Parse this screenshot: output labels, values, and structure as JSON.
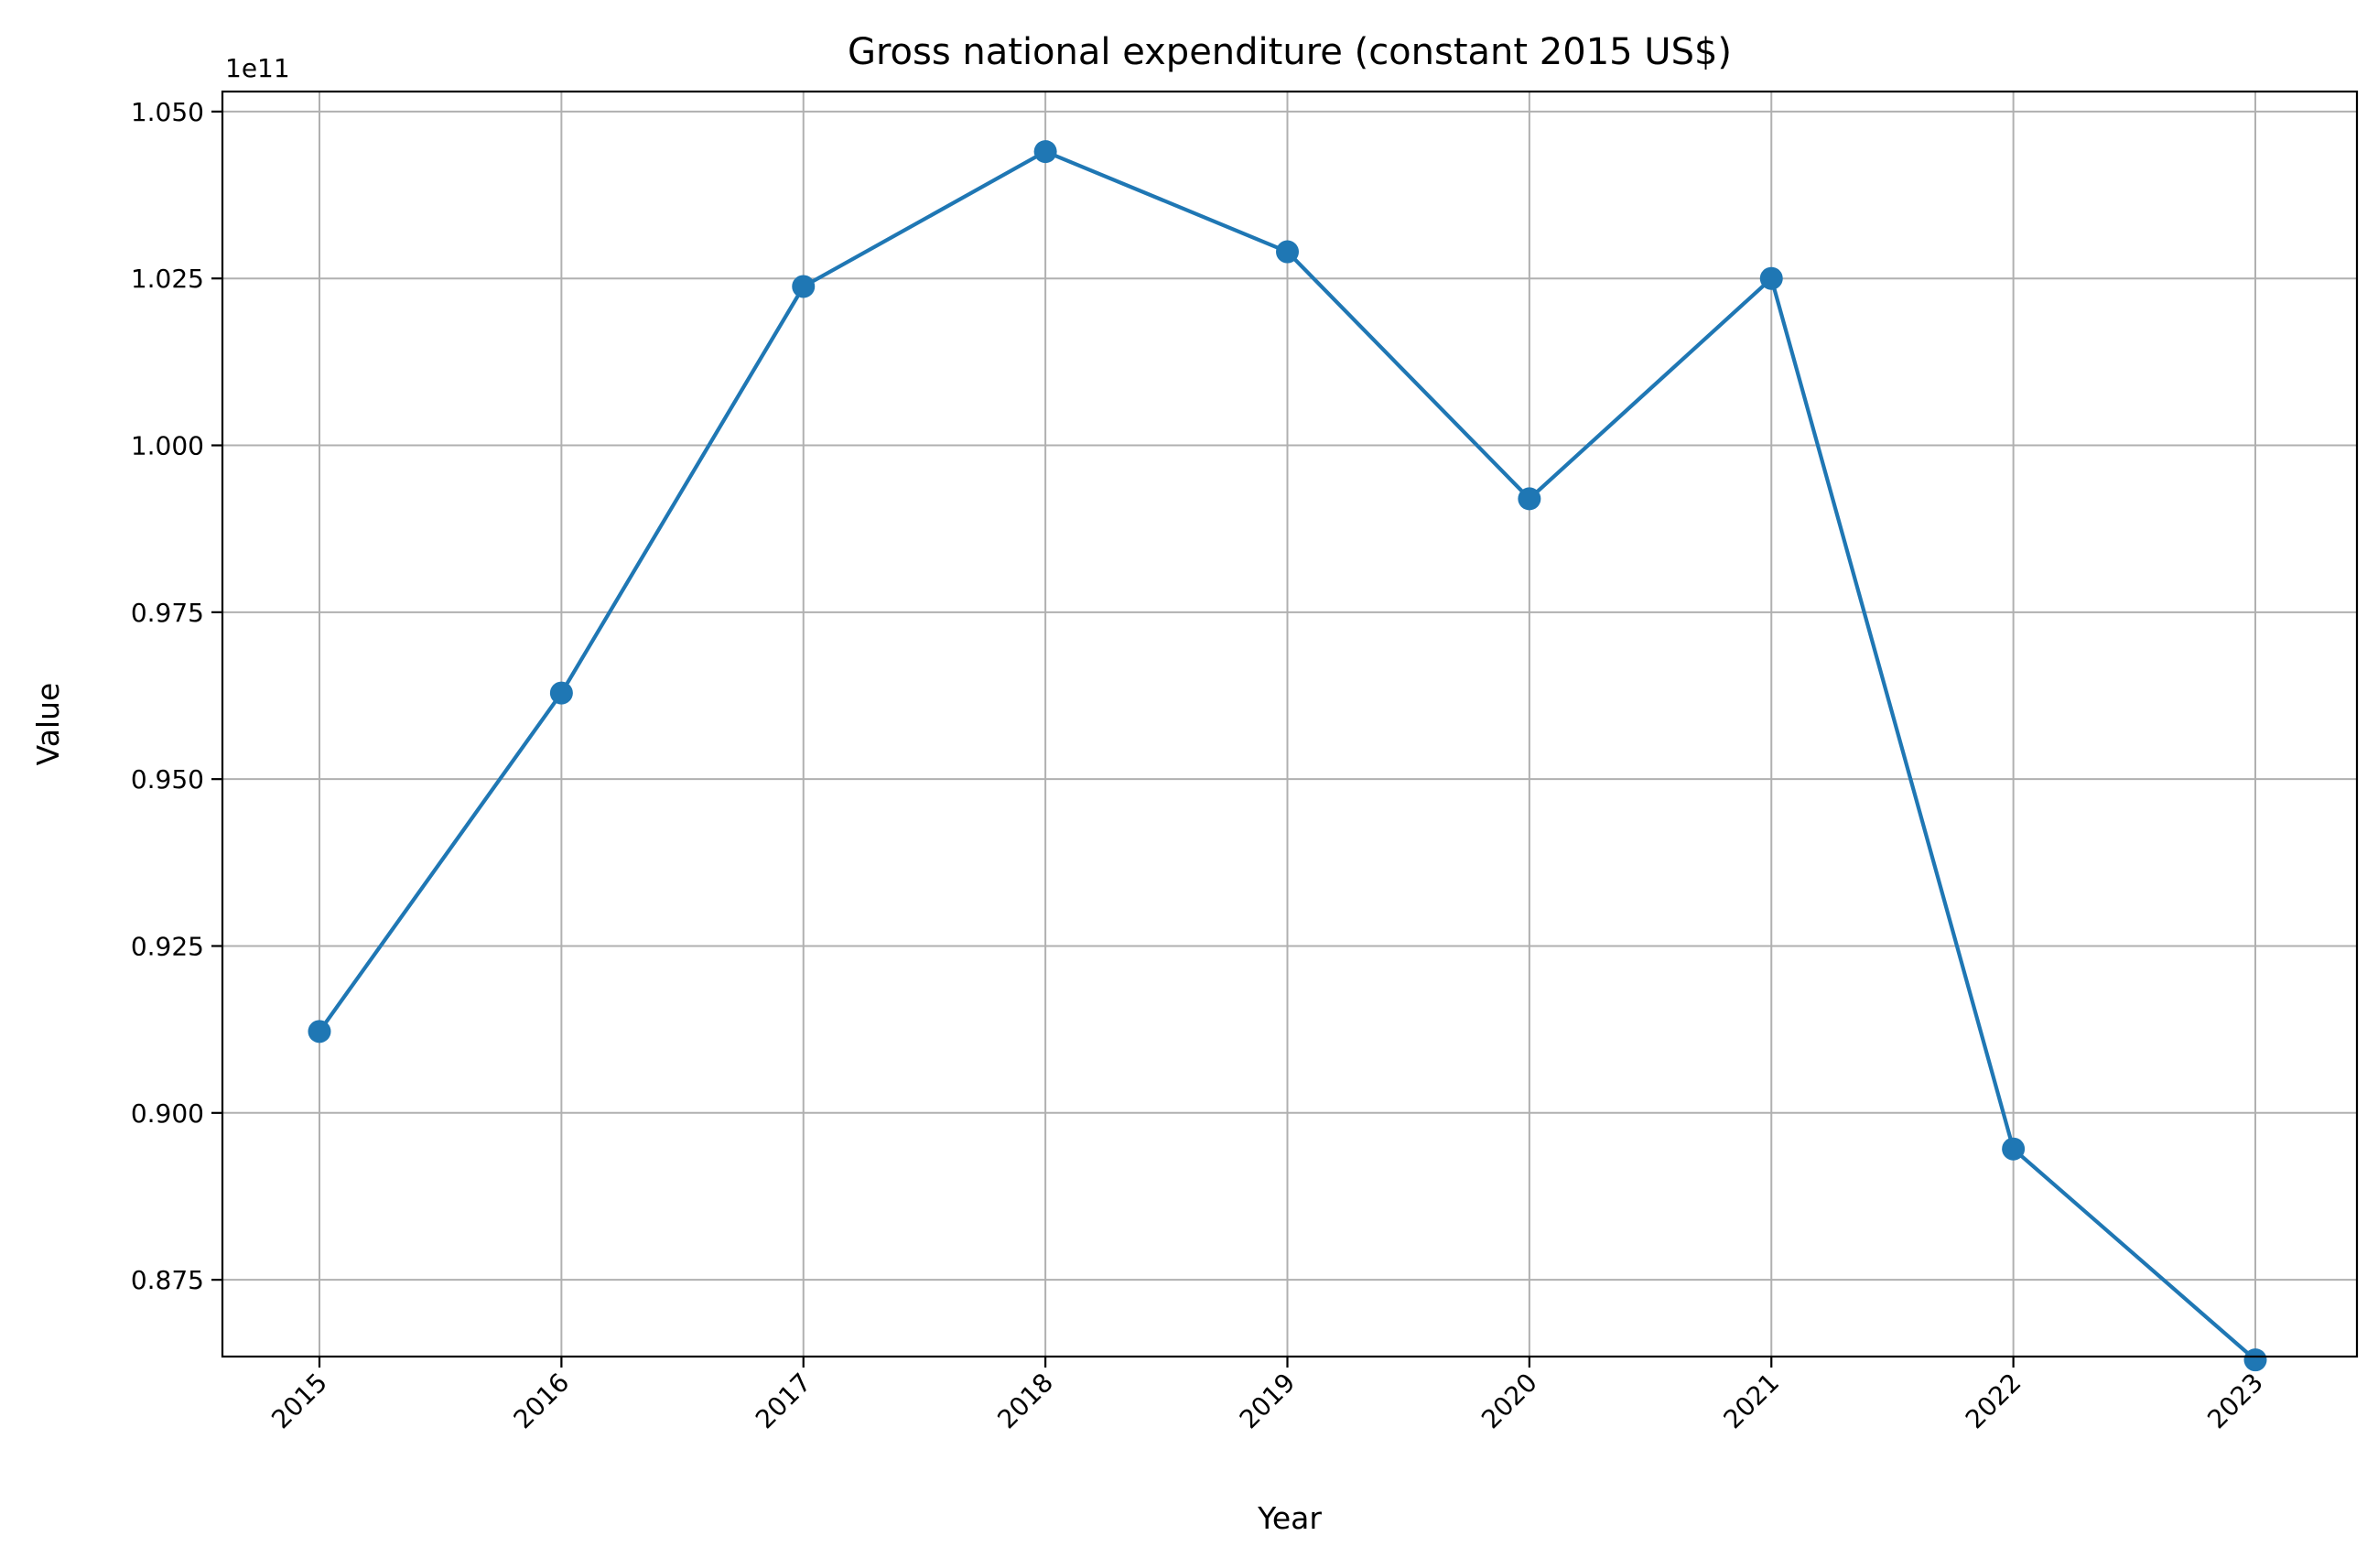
{
  "chart_data": {
    "type": "line",
    "title": "Gross national expenditure (constant 2015 US$)",
    "xlabel": "Year",
    "ylabel": "Value",
    "offset_text": "1e11",
    "grid": true,
    "x": [
      "2015",
      "2016",
      "2017",
      "2018",
      "2019",
      "2020",
      "2021",
      "2022",
      "2023"
    ],
    "y_ticks": [
      "0.875",
      "0.900",
      "0.925",
      "0.950",
      "0.975",
      "1.000",
      "1.025",
      "1.050"
    ],
    "ylim": [
      0.8635,
      1.053
    ],
    "series": [
      {
        "values": [
          0.9122,
          0.9629,
          1.0238,
          1.044,
          1.029,
          0.992,
          1.025,
          0.8946,
          0.863
        ],
        "color": "#1f77b4",
        "marker": "circle"
      }
    ]
  }
}
